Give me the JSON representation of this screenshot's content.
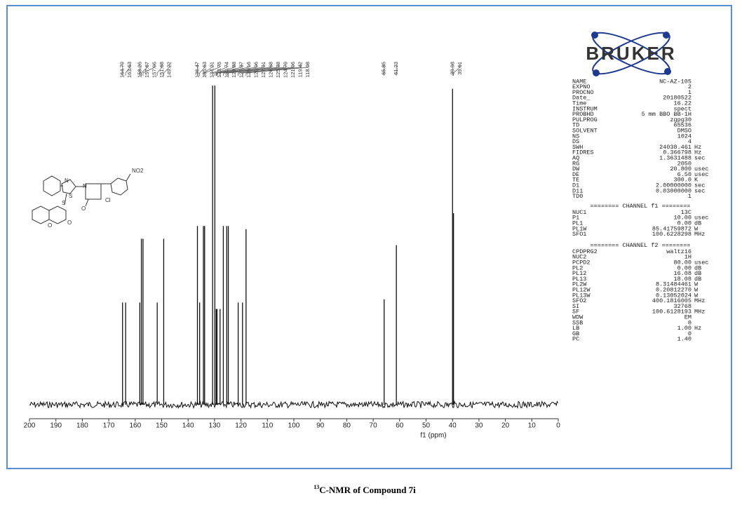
{
  "chart_data": {
    "type": "spectrum",
    "x_label": "f1 (ppm)",
    "xlim": [
      200,
      0
    ],
    "xticks": [
      200,
      190,
      180,
      170,
      160,
      150,
      140,
      130,
      120,
      110,
      100,
      90,
      80,
      70,
      60,
      50,
      40,
      30,
      20,
      10,
      0
    ],
    "ylim": [
      0,
      100
    ],
    "color": "#111111",
    "x": [
      164.79,
      163.63,
      158.26,
      157.67,
      157.05,
      151.68,
      149.22,
      136.47,
      135.63,
      134.21,
      133.75,
      130.74,
      129.88,
      129.37,
      129.16,
      129.06,
      127.91,
      126.68,
      125.38,
      124.79,
      121.06,
      119.42,
      118.08,
      65.85,
      61.23,
      39.98,
      39.61
    ],
    "values": [
      32,
      32,
      32,
      52,
      52,
      32,
      52,
      56,
      32,
      56,
      56,
      100,
      100,
      30,
      30,
      30,
      30,
      56,
      56,
      56,
      32,
      32,
      55,
      33,
      50,
      99,
      60
    ],
    "logo": "BRUKER",
    "structure_labels": [
      "NO2",
      "N",
      "S",
      "N",
      "O",
      "Cl",
      "S",
      "O",
      "O"
    ],
    "parameters": [
      [
        "NAME",
        "NC-AZ-105",
        ""
      ],
      [
        "EXPNO",
        "2",
        ""
      ],
      [
        "PROCNO",
        "1",
        ""
      ],
      [
        "Date_",
        "20180522",
        ""
      ],
      [
        "Time",
        "16.22",
        ""
      ],
      [
        "INSTRUM",
        "spect",
        ""
      ],
      [
        "PROBHD",
        "5 mm BBO BB-1H",
        ""
      ],
      [
        "PULPROG",
        "zgpg30",
        ""
      ],
      [
        "TD",
        "65536",
        ""
      ],
      [
        "SOLVENT",
        "DMSO",
        ""
      ],
      [
        "NS",
        "1024",
        ""
      ],
      [
        "DS",
        "4",
        ""
      ],
      [
        "SWH",
        "24038.461",
        "Hz"
      ],
      [
        "FIDRES",
        "0.366798",
        "Hz"
      ],
      [
        "AQ",
        "1.3631488",
        "sec"
      ],
      [
        "RG",
        "2050",
        ""
      ],
      [
        "DW",
        "20.800",
        "usec"
      ],
      [
        "DE",
        "6.50",
        "usec"
      ],
      [
        "TE",
        "300.0",
        "K"
      ],
      [
        "D1",
        "2.00000000",
        "sec"
      ],
      [
        "D11",
        "0.03000000",
        "sec"
      ],
      [
        "TD0",
        "1",
        ""
      ]
    ],
    "channel1_title": "======== CHANNEL f1 ========",
    "channel1": [
      [
        "NUC1",
        "13C",
        ""
      ],
      [
        "P1",
        "10.00",
        "usec"
      ],
      [
        "PL1",
        "0.00",
        "dB"
      ],
      [
        "PL1W",
        "85.41759872",
        "W"
      ],
      [
        "SFO1",
        "100.6228298",
        "MHz"
      ]
    ],
    "channel2_title": "======== CHANNEL f2 ========",
    "channel2": [
      [
        "CPDPRG2",
        "waltz16",
        ""
      ],
      [
        "NUC2",
        "1H",
        ""
      ],
      [
        "PCPD2",
        "80.00",
        "usec"
      ],
      [
        "PL2",
        "0.00",
        "dB"
      ],
      [
        "PL12",
        "16.08",
        "dB"
      ],
      [
        "PL13",
        "18.08",
        "dB"
      ],
      [
        "PL2W",
        "8.31484461",
        "W"
      ],
      [
        "PL12W",
        "0.20812270",
        "W"
      ],
      [
        "PL13W",
        "0.13052024",
        "W"
      ],
      [
        "SFO2",
        "400.1816005",
        "MHz"
      ],
      [
        "SI",
        "32768",
        ""
      ],
      [
        "SF",
        "100.6128193",
        "MHz"
      ],
      [
        "WDW",
        "EM",
        ""
      ],
      [
        "SSB",
        "0",
        ""
      ],
      [
        "LB",
        "1.00",
        "Hz"
      ],
      [
        "GB",
        "0",
        ""
      ],
      [
        "PC",
        "1.40",
        ""
      ]
    ],
    "caption_sup": "13",
    "caption": "C-NMR of Compound 7i"
  }
}
